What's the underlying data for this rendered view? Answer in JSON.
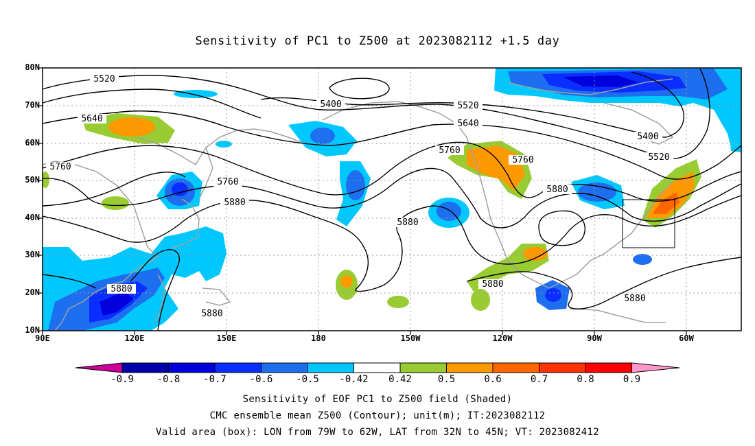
{
  "title": "Sensitivity of PC1 to Z500 at 2023082112 +1.5 day",
  "map": {
    "lat_ticks": [
      "80N",
      "70N",
      "60N",
      "50N",
      "40N",
      "30N",
      "20N",
      "10N"
    ],
    "lon_ticks": [
      "90E",
      "120E",
      "150E",
      "180",
      "150W",
      "120W",
      "90W",
      "60W"
    ],
    "contour_labels": [
      "5520",
      "5400",
      "5520",
      "5640",
      "5640",
      "5760",
      "5760",
      "5760",
      "5760",
      "5880",
      "5880",
      "5880",
      "5880",
      "5880",
      "5880",
      "5880",
      "5400",
      "5520"
    ],
    "valid_box": {
      "lon_from": "79W",
      "lon_to": "62W",
      "lat_from": "32N",
      "lat_to": "45N"
    }
  },
  "colorbar": {
    "labels": [
      "-0.9",
      "-0.8",
      "-0.7",
      "-0.6",
      "-0.5",
      "-0.42",
      "0.42",
      "0.5",
      "0.6",
      "0.7",
      "0.8",
      "0.9"
    ],
    "colors": [
      "#cc0099",
      "#0000aa",
      "#0000dd",
      "#0a2eff",
      "#1e6ef0",
      "#0aa0f0",
      "#00c8ff",
      "#ffffff",
      "#99cc33",
      "#ff9900",
      "#ff6600",
      "#ff3300",
      "#ff0000",
      "#ff99cc"
    ]
  },
  "captions": {
    "line1": "Sensitivity of EOF PC1 to Z500 field (Shaded)",
    "line2": "CMC ensemble mean Z500 (Contour); unit(m); IT:2023082112",
    "line3": "Valid area (box): LON from 79W to 62W, LAT from 32N to 45N; VT: 2023082412"
  }
}
